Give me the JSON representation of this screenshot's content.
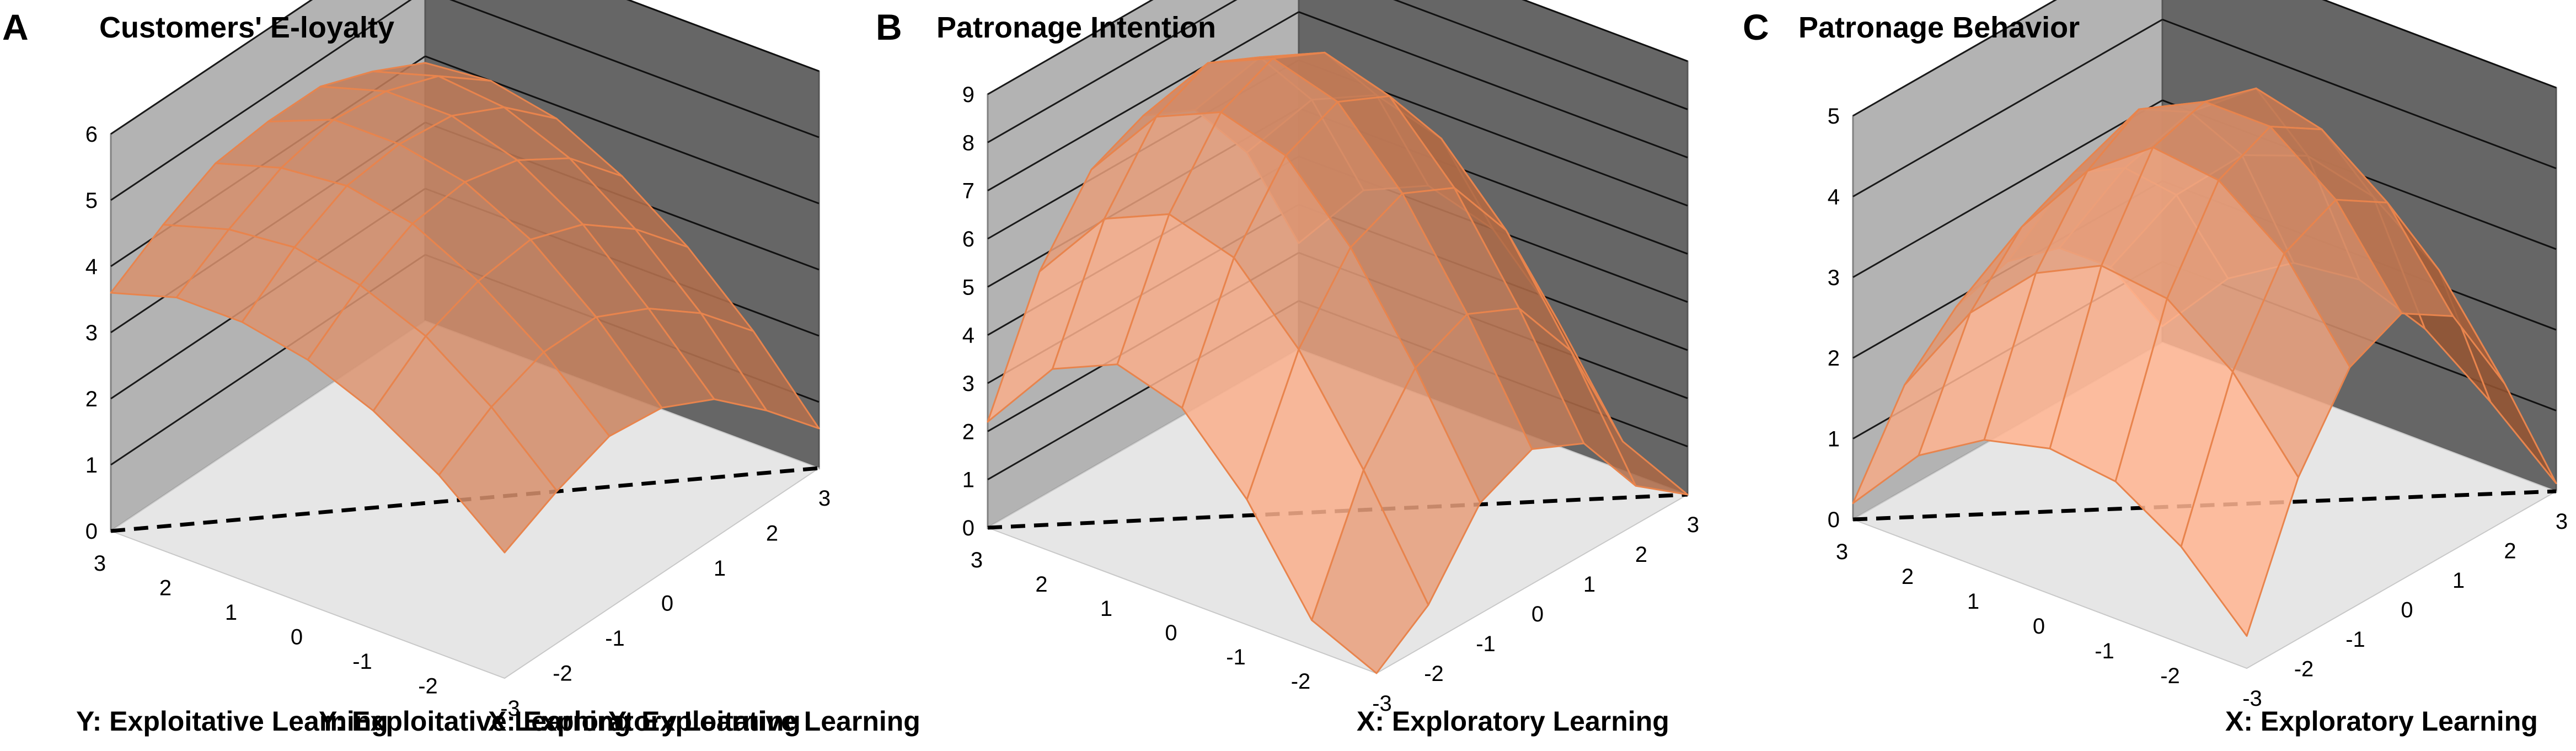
{
  "figure": {
    "panels": [
      {
        "letter": "A",
        "title": "Customers' E-loyalty"
      },
      {
        "letter": "B",
        "title": "Patronage Intention"
      },
      {
        "letter": "C",
        "title": "Patronage Behavior"
      }
    ]
  },
  "chart_data": [
    {
      "type": "surface",
      "title": "Customers' E-loyalty",
      "xlabel": "X: Exploratory Learning",
      "ylabel": "Y: Exploitative Learning",
      "zlabel": "",
      "x_ticks": [
        "-3",
        "-2",
        "-1",
        "0",
        "1",
        "2",
        "3"
      ],
      "y_ticks": [
        "-2",
        "-1",
        "0",
        "1",
        "2",
        "3"
      ],
      "z_ticks": [
        "0",
        "1",
        "2",
        "3",
        "4",
        "5",
        "6"
      ],
      "xlim": [
        -3,
        3
      ],
      "ylim": [
        -3,
        3
      ],
      "zlim": [
        0,
        6
      ],
      "grid": true,
      "x": [
        -3,
        -2,
        -1,
        0,
        1,
        2,
        3
      ],
      "y": [
        3,
        2,
        1,
        0,
        -1,
        -2,
        -3
      ],
      "z": [
        [
          3.6,
          4.1,
          4.5,
          4.6,
          4.6,
          4.3,
          3.9
        ],
        [
          3.9,
          4.4,
          4.8,
          5.0,
          4.9,
          4.6,
          4.0
        ],
        [
          3.9,
          4.5,
          4.9,
          5.0,
          4.9,
          4.5,
          3.8
        ],
        [
          3.7,
          4.3,
          4.7,
          4.8,
          4.6,
          4.1,
          3.3
        ],
        [
          3.3,
          3.9,
          4.2,
          4.3,
          4.0,
          3.4,
          2.6
        ],
        [
          2.7,
          3.2,
          3.5,
          3.5,
          3.1,
          2.5,
          1.7
        ],
        [
          1.9,
          2.3,
          2.6,
          2.5,
          2.1,
          1.4,
          0.6
        ]
      ]
    },
    {
      "type": "surface",
      "title": "Patronage Intention",
      "xlabel": "X: Exploratory Learning",
      "ylabel": "Y: Exploitative Learning",
      "zlabel": "",
      "x_ticks": [
        "-3",
        "-2",
        "-1",
        "0",
        "1",
        "2",
        "3"
      ],
      "y_ticks": [
        "-2",
        "-1",
        "0",
        "1",
        "2",
        "3"
      ],
      "z_ticks": [
        "0",
        "1",
        "2",
        "3",
        "4",
        "5",
        "6",
        "7",
        "8",
        "9"
      ],
      "xlim": [
        -3,
        3
      ],
      "ylim": [
        -3,
        3
      ],
      "zlim": [
        0,
        9
      ],
      "grid": true,
      "x": [
        -3,
        -2,
        -1,
        0,
        1,
        2,
        3
      ],
      "y": [
        3,
        2,
        1,
        0,
        -1,
        -2,
        -3
      ],
      "z": [
        [
          2.2,
          4.7,
          6.2,
          6.7,
          6.2,
          4.7,
          2.2
        ],
        [
          3.8,
          6.3,
          7.8,
          8.3,
          7.8,
          6.3,
          3.8
        ],
        [
          4.4,
          6.9,
          8.4,
          8.9,
          8.4,
          6.9,
          4.4
        ],
        [
          4.0,
          6.5,
          8.0,
          8.5,
          8.0,
          6.5,
          4.0
        ],
        [
          2.6,
          5.1,
          6.6,
          7.1,
          6.6,
          5.1,
          2.6
        ],
        [
          0.6,
          3.1,
          4.6,
          5.1,
          4.6,
          3.1,
          0.6
        ],
        [
          0.0,
          0.8,
          2.3,
          2.8,
          2.3,
          0.8,
          0.0
        ]
      ]
    },
    {
      "type": "surface",
      "title": "Patronage Behavior",
      "xlabel": "X: Exploratory Learning",
      "ylabel": "Y: Exploitative Learning",
      "zlabel": "",
      "x_ticks": [
        "-3",
        "-2",
        "-1",
        "0",
        "1",
        "2",
        "3"
      ],
      "y_ticks": [
        "-2",
        "-1",
        "0",
        "1",
        "2",
        "3"
      ],
      "z_ticks": [
        "0",
        "1",
        "2",
        "3",
        "4",
        "5"
      ],
      "xlim": [
        -3,
        3
      ],
      "ylim": [
        -3,
        3
      ],
      "zlim": [
        0,
        5
      ],
      "grid": true,
      "x": [
        -3,
        -2,
        -1,
        0,
        1,
        2,
        3
      ],
      "y": [
        3,
        2,
        1,
        0,
        -1,
        -2,
        -3
      ],
      "z": [
        [
          0.2,
          1.3,
          1.9,
          2.1,
          1.9,
          1.3,
          0.2
        ],
        [
          1.1,
          2.5,
          3.2,
          3.5,
          3.2,
          2.5,
          1.1
        ],
        [
          1.6,
          3.3,
          4.2,
          4.6,
          4.2,
          3.3,
          1.6
        ],
        [
          1.8,
          3.7,
          4.8,
          5.1,
          4.8,
          3.6,
          1.7
        ],
        [
          1.7,
          3.6,
          4.7,
          5.0,
          4.6,
          3.4,
          1.4
        ],
        [
          1.2,
          3.0,
          4.1,
          4.4,
          4.0,
          2.8,
          0.8
        ],
        [
          0.4,
          2.0,
          3.0,
          3.3,
          2.9,
          1.7,
          0.1
        ]
      ]
    }
  ]
}
